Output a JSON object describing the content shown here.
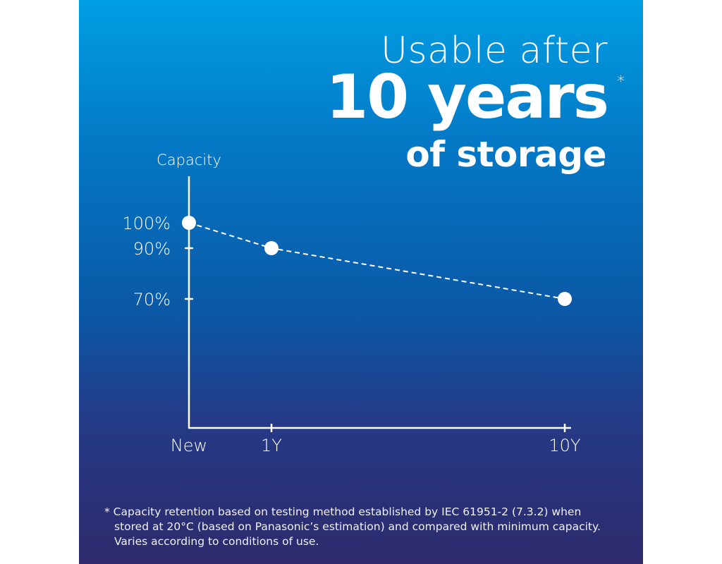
{
  "heading": {
    "line1": "Usable after",
    "line2": "10 years",
    "asterisk": "*",
    "line3": "of storage"
  },
  "footnote": "* Capacity retention based on testing method established by IEC 61951-2 (7.3.2) when stored at 20°C (based on Panasonic’s estimation) and compared with minimum capacity. Varies according to conditions of use.",
  "colors": {
    "gradient_top": "#009fe3",
    "gradient_bottom": "#2e2a6c",
    "marks": "#ffffff"
  },
  "chart_data": {
    "type": "line",
    "ylabel": "Capacity",
    "categories": [
      "New",
      "1Y",
      "10Y"
    ],
    "values": [
      100,
      90,
      70
    ],
    "y_tick_labels": [
      "100%",
      "90%",
      "70%"
    ],
    "y_ticks": [
      100,
      90,
      70
    ],
    "line_style": "dashed",
    "markers": "circle",
    "grid": false,
    "legend": "none"
  }
}
